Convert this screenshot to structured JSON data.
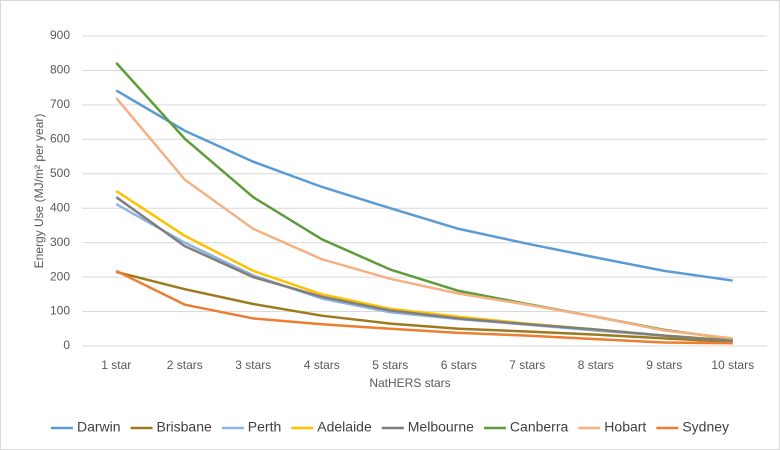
{
  "chart_data": {
    "type": "line",
    "y_label": "Energy Use (MJ/m² per year)",
    "x_label": "NatHERS stars",
    "categories": [
      "1 star",
      "2 stars",
      "3 stars",
      "4 stars",
      "5 stars",
      "6 stars",
      "7 stars",
      "8 stars",
      "9 stars",
      "10 stars"
    ],
    "ylim": [
      0,
      900
    ],
    "yticks": [
      0,
      100,
      200,
      300,
      400,
      500,
      600,
      700,
      800,
      900
    ],
    "grid": true,
    "legend": "bottom",
    "series": [
      {
        "name": "Darwin",
        "color": "#5b9bd5",
        "values": [
          742,
          625,
          535,
          462,
          400,
          340,
          297,
          257,
          218,
          190
        ]
      },
      {
        "name": "Brisbane",
        "color": "#9e7a1e",
        "values": [
          215,
          165,
          122,
          88,
          65,
          50,
          42,
          33,
          22,
          12
        ]
      },
      {
        "name": "Perth",
        "color": "#8fb4e0",
        "values": [
          412,
          300,
          205,
          138,
          98,
          78,
          62,
          45,
          30,
          15
        ]
      },
      {
        "name": "Adelaide",
        "color": "#ffc000",
        "values": [
          450,
          320,
          218,
          150,
          108,
          85,
          65,
          48,
          30,
          17
        ]
      },
      {
        "name": "Melbourne",
        "color": "#7f7f7f",
        "values": [
          432,
          290,
          200,
          143,
          103,
          80,
          63,
          48,
          30,
          15
        ]
      },
      {
        "name": "Canberra",
        "color": "#5e9b3a",
        "values": [
          822,
          602,
          432,
          310,
          222,
          160,
          122,
          85,
          47,
          20
        ]
      },
      {
        "name": "Hobart",
        "color": "#f4b183",
        "values": [
          720,
          483,
          340,
          252,
          195,
          152,
          120,
          85,
          45,
          22
        ]
      },
      {
        "name": "Sydney",
        "color": "#ed7d31",
        "values": [
          218,
          120,
          80,
          63,
          50,
          38,
          30,
          20,
          10,
          8
        ]
      }
    ]
  }
}
